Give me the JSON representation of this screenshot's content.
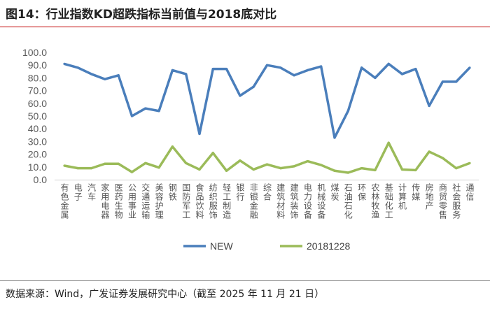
{
  "title": "图14：行业指数KD超跌指标当前值与2018底对比",
  "source": "数据来源：Wind，广发证券发展研究中心（截至 2025 年 11 月 21 日）",
  "chart_data": {
    "type": "line",
    "title": "",
    "xlabel": "",
    "ylabel": "",
    "ylim": [
      0,
      100
    ],
    "yticks": [
      "0.0",
      "10.0",
      "20.0",
      "30.0",
      "40.0",
      "50.0",
      "60.0",
      "70.0",
      "80.0",
      "90.0",
      "100.0"
    ],
    "grid": false,
    "legend_position": "bottom",
    "categories": [
      "有色金属",
      "电子",
      "汽车",
      "家用电器",
      "医药生物",
      "公用事业",
      "交通运输",
      "美容护理",
      "钢铁",
      "国防军工",
      "食品饮料",
      "纺织服饰",
      "轻工制造",
      "银行",
      "非银金融",
      "综合",
      "建筑材料",
      "建筑装饰",
      "电力设备",
      "机械设备",
      "煤炭",
      "石油石化",
      "环保",
      "农林牧渔",
      "基础化工",
      "计算机",
      "传媒",
      "房地产",
      "商贸零售",
      "社会服务",
      "通信"
    ],
    "series": [
      {
        "name": "NEW",
        "color": "#4a7ebb",
        "values": [
          91,
          88,
          83,
          79,
          82,
          50,
          56,
          54,
          86,
          83,
          36,
          87,
          87,
          66,
          73,
          90,
          88,
          82,
          86,
          89,
          33,
          54,
          88,
          80,
          91,
          83,
          87,
          58,
          77,
          77,
          88
        ]
      },
      {
        "name": "20181228",
        "color": "#9bbb59",
        "values": [
          11,
          9,
          9,
          12.5,
          12.5,
          6,
          13,
          9.5,
          26,
          13,
          8,
          21,
          7,
          15,
          8,
          12,
          9,
          10.5,
          14.5,
          11.5,
          7,
          5.5,
          9,
          7.5,
          29,
          8,
          7.5,
          22,
          17,
          9,
          13
        ]
      }
    ]
  }
}
